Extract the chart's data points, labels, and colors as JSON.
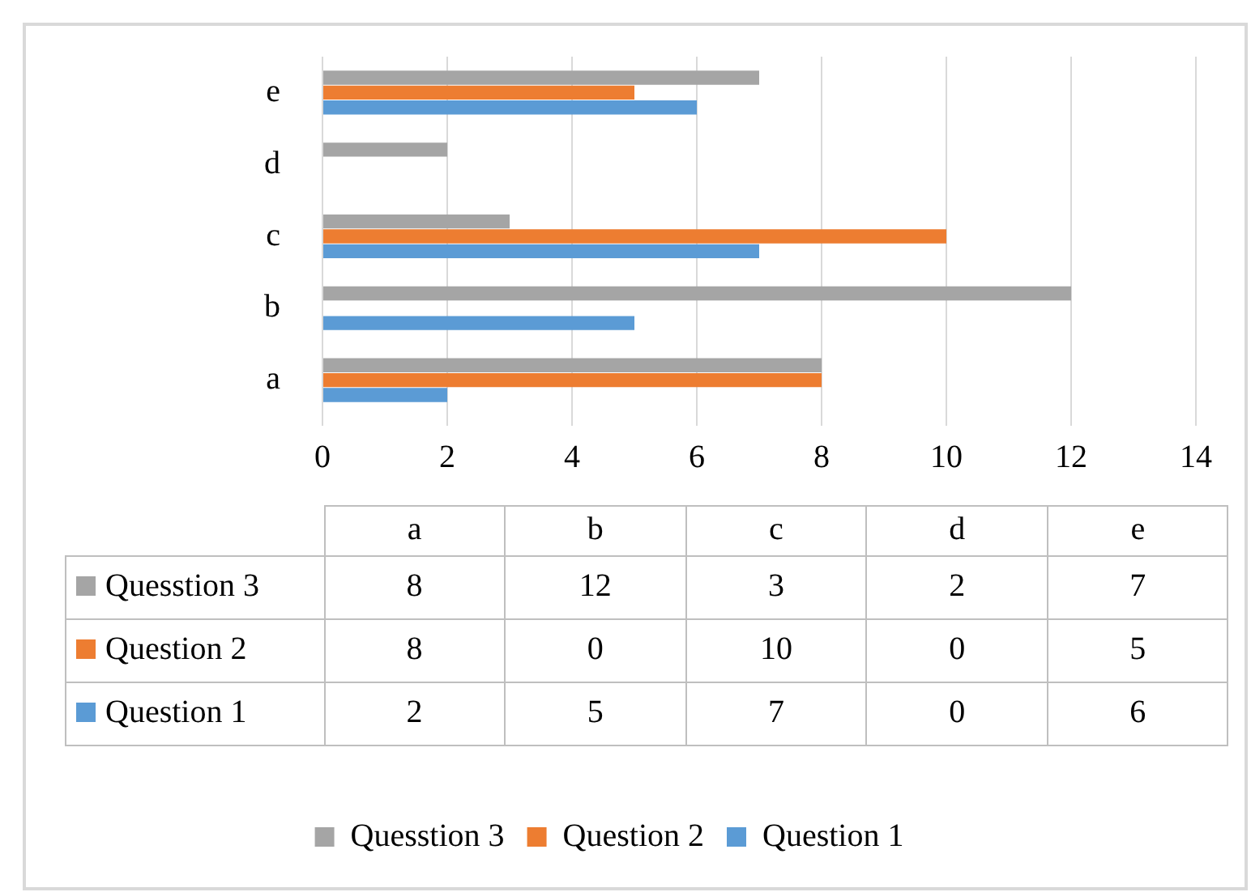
{
  "chart_data": [
    {
      "type": "bar",
      "orientation": "horizontal",
      "categories": [
        "e",
        "d",
        "c",
        "b",
        "a"
      ],
      "series": [
        {
          "name": "Quesstion 3",
          "color": "#a5a5a5",
          "values": [
            7,
            2,
            3,
            12,
            8
          ]
        },
        {
          "name": "Question 2",
          "color": "#ed7d31",
          "values": [
            5,
            0,
            10,
            0,
            8
          ]
        },
        {
          "name": "Question 1",
          "color": "#5b9bd5",
          "values": [
            6,
            0,
            7,
            5,
            2
          ]
        }
      ],
      "xlim": [
        0,
        14
      ],
      "xticks": [
        0,
        2,
        4,
        6,
        8,
        10,
        12,
        14
      ],
      "grid": "x",
      "legend": "bottom"
    },
    {
      "type": "heatmap",
      "data_labels": true,
      "categories": [
        "a",
        "b",
        "c",
        "d",
        "e"
      ],
      "y_categories": [
        "Quesstion 3",
        "Question 2",
        "Question 1"
      ],
      "colors": [
        "#a5a5a5",
        "#ed7d31",
        "#5b9bd5"
      ],
      "cells": [
        [
          8,
          12,
          3,
          2,
          7
        ],
        [
          8,
          0,
          10,
          0,
          5
        ],
        [
          2,
          5,
          7,
          0,
          6
        ]
      ]
    }
  ]
}
